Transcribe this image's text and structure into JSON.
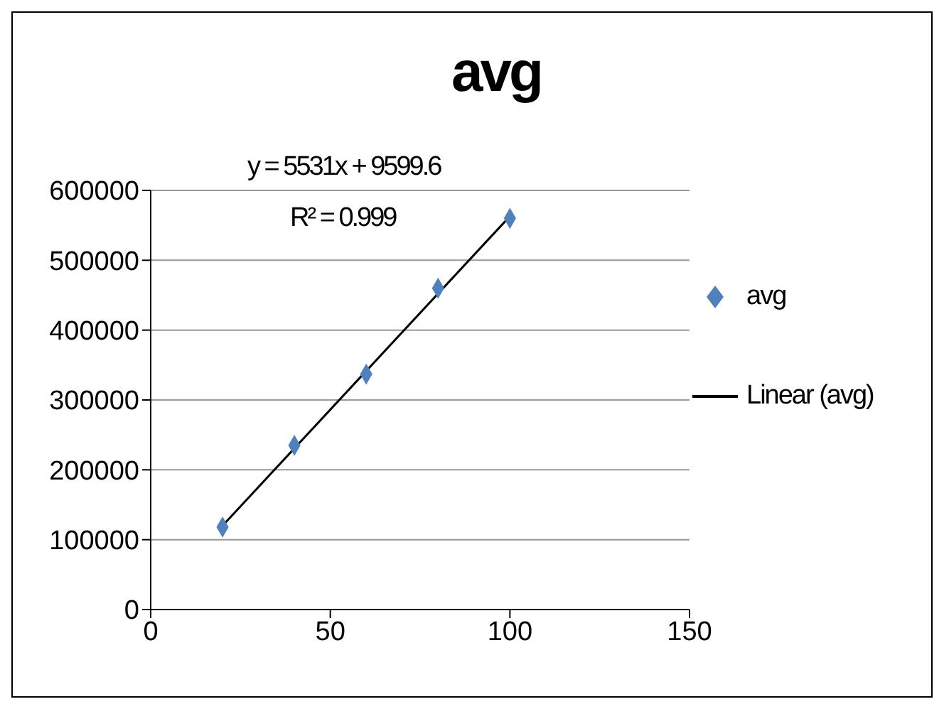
{
  "chart_data": {
    "type": "scatter",
    "title": "avg",
    "annotations": [
      "y = 5531x + 9599.6",
      "R² = 0.999"
    ],
    "series": [
      {
        "name": "avg",
        "color": "#4f81bd",
        "marker": "diamond",
        "x": [
          20,
          40,
          60,
          80,
          100
        ],
        "values": [
          118000,
          235000,
          337000,
          460000,
          560000
        ]
      },
      {
        "name": "Linear (avg)",
        "type": "line",
        "color": "#000000",
        "marker": "none",
        "x": [
          20,
          100
        ],
        "values": [
          120000,
          563000
        ]
      }
    ],
    "xlim": [
      0,
      150
    ],
    "xticks": [
      0,
      50,
      100,
      150
    ],
    "ylim": [
      0,
      600000
    ],
    "yticks": [
      0,
      100000,
      200000,
      300000,
      400000,
      500000,
      600000
    ],
    "grid": "y",
    "legend": "right"
  }
}
